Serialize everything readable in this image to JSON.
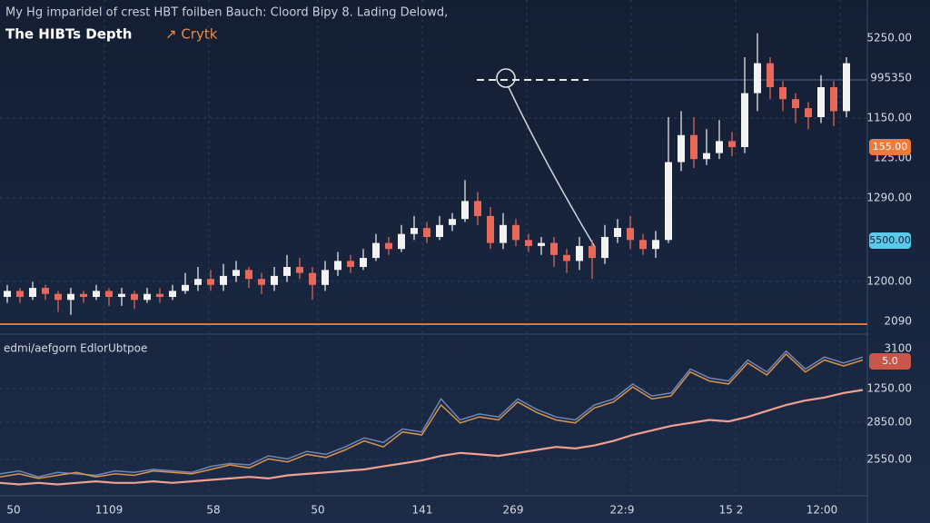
{
  "header": {
    "caption": "My Hg imparidel of crest HBT foilben Bauch: Cloord Bipy 8. Lading Delowd,",
    "title": "The HIBTs Depth",
    "title_accent": "↗ Crytk"
  },
  "price_panel": {
    "ylim": [
      0,
      100
    ],
    "candles": [
      [
        10,
        14,
        8,
        12
      ],
      [
        12,
        13,
        8,
        10
      ],
      [
        10,
        15,
        9,
        13
      ],
      [
        13,
        14,
        9,
        11
      ],
      [
        11,
        12,
        5,
        9
      ],
      [
        9,
        13,
        4,
        11
      ],
      [
        11,
        12,
        8,
        10
      ],
      [
        10,
        14,
        9,
        12
      ],
      [
        12,
        13,
        7,
        10
      ],
      [
        10,
        13,
        7,
        11
      ],
      [
        11,
        12,
        6,
        9
      ],
      [
        9,
        13,
        8,
        11
      ],
      [
        11,
        13,
        8,
        10
      ],
      [
        10,
        14,
        9,
        12
      ],
      [
        12,
        18,
        11,
        14
      ],
      [
        14,
        20,
        12,
        16
      ],
      [
        16,
        19,
        12,
        14
      ],
      [
        14,
        21,
        12,
        17
      ],
      [
        17,
        22,
        15,
        19
      ],
      [
        19,
        20,
        13,
        16
      ],
      [
        16,
        18,
        11,
        14
      ],
      [
        14,
        20,
        12,
        17
      ],
      [
        17,
        24,
        15,
        20
      ],
      [
        20,
        23,
        16,
        18
      ],
      [
        18,
        20,
        9,
        14
      ],
      [
        14,
        22,
        12,
        19
      ],
      [
        19,
        25,
        17,
        22
      ],
      [
        22,
        24,
        18,
        20
      ],
      [
        20,
        26,
        19,
        23
      ],
      [
        23,
        31,
        22,
        28
      ],
      [
        28,
        30,
        24,
        26
      ],
      [
        26,
        34,
        25,
        31
      ],
      [
        31,
        37,
        29,
        33
      ],
      [
        33,
        35,
        28,
        30
      ],
      [
        30,
        37,
        29,
        34
      ],
      [
        34,
        38,
        32,
        36
      ],
      [
        36,
        49,
        35,
        42
      ],
      [
        42,
        45,
        34,
        37
      ],
      [
        37,
        40,
        26,
        28
      ],
      [
        28,
        38,
        26,
        34
      ],
      [
        34,
        36,
        27,
        29
      ],
      [
        29,
        31,
        25,
        27
      ],
      [
        27,
        30,
        24,
        28
      ],
      [
        28,
        30,
        20,
        24
      ],
      [
        24,
        26,
        18,
        22
      ],
      [
        22,
        30,
        19,
        27
      ],
      [
        27,
        29,
        16,
        23
      ],
      [
        23,
        34,
        21,
        30
      ],
      [
        30,
        36,
        28,
        33
      ],
      [
        33,
        37,
        26,
        29
      ],
      [
        29,
        31,
        24,
        26
      ],
      [
        26,
        32,
        23,
        29
      ],
      [
        29,
        70,
        28,
        55
      ],
      [
        55,
        72,
        52,
        64
      ],
      [
        64,
        70,
        53,
        56
      ],
      [
        56,
        66,
        54,
        58
      ],
      [
        58,
        69,
        56,
        62
      ],
      [
        62,
        65,
        57,
        60
      ],
      [
        60,
        90,
        58,
        78
      ],
      [
        78,
        98,
        72,
        88
      ],
      [
        88,
        90,
        76,
        80
      ],
      [
        80,
        82,
        72,
        76
      ],
      [
        76,
        78,
        68,
        73
      ],
      [
        73,
        75,
        66,
        70
      ],
      [
        70,
        84,
        68,
        80
      ],
      [
        80,
        82,
        67,
        72
      ],
      [
        72,
        90,
        70,
        88
      ]
    ],
    "axis_labels": [
      "5250.00",
      "995350",
      "1150.00",
      "125.00",
      "1290.00",
      "1200.00",
      "2090"
    ],
    "badges": [
      "155.00",
      "5500.00"
    ]
  },
  "indicator_panel": {
    "label": "edmi/aefgorn EdlorUbtpoe",
    "ylim": [
      0,
      100
    ],
    "series": [
      {
        "color": "#6f86b8",
        "values": [
          14,
          16,
          12,
          15,
          14,
          13,
          16,
          15,
          17,
          16,
          15,
          19,
          21,
          20,
          26,
          24,
          29,
          27,
          32,
          38,
          35,
          44,
          42,
          64,
          50,
          54,
          52,
          64,
          57,
          52,
          50,
          60,
          64,
          74,
          66,
          68,
          84,
          78,
          76,
          90,
          82,
          96,
          84,
          92,
          88,
          92
        ]
      },
      {
        "color": "#d9944e",
        "values": [
          12,
          14,
          11,
          13,
          15,
          12,
          14,
          13,
          16,
          15,
          14,
          17,
          20,
          18,
          24,
          22,
          27,
          25,
          30,
          36,
          32,
          42,
          40,
          60,
          48,
          52,
          50,
          62,
          55,
          50,
          48,
          58,
          62,
          72,
          64,
          66,
          82,
          76,
          74,
          88,
          80,
          94,
          82,
          90,
          86,
          90
        ]
      },
      {
        "color": "#f0a090",
        "values": [
          8,
          7,
          8,
          7,
          8,
          9,
          8,
          8,
          9,
          8,
          9,
          10,
          11,
          12,
          11,
          13,
          14,
          15,
          16,
          17,
          19,
          21,
          23,
          26,
          28,
          27,
          26,
          28,
          30,
          32,
          31,
          33,
          36,
          40,
          43,
          46,
          48,
          50,
          49,
          52,
          56,
          60,
          63,
          65,
          68,
          70
        ]
      }
    ],
    "axis_labels": [
      "3100",
      "1250.00",
      "2850.00",
      "2550.00"
    ],
    "badge": "5.0"
  },
  "time_axis": [
    "50",
    "1109",
    "58",
    "50",
    "141",
    "269",
    "22:9",
    "15 2",
    "12:00"
  ]
}
